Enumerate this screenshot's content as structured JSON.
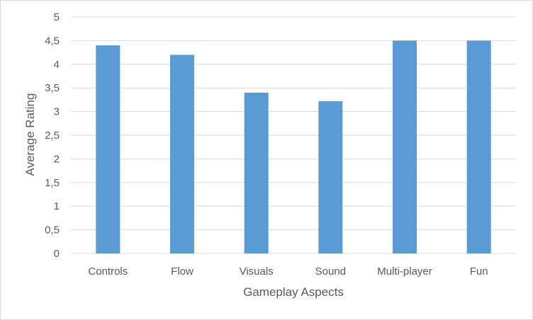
{
  "chart_data": {
    "type": "bar",
    "title": "",
    "xlabel": "Gameplay Aspects",
    "ylabel": "Average Rating",
    "categories": [
      "Controls",
      "Flow",
      "Visuals",
      "Sound",
      "Multi-player",
      "Fun"
    ],
    "values": [
      4.4,
      4.2,
      3.4,
      3.22,
      4.5,
      4.5
    ],
    "ylim": [
      0,
      5
    ],
    "yticks": [
      "0",
      "0,5",
      "1",
      "1,5",
      "2",
      "2,5",
      "3",
      "3,5",
      "4",
      "4,5",
      "5"
    ],
    "grid": true,
    "legend": "none",
    "bar_color": "#5b9bd5",
    "grid_color": "#d9d9d9"
  }
}
